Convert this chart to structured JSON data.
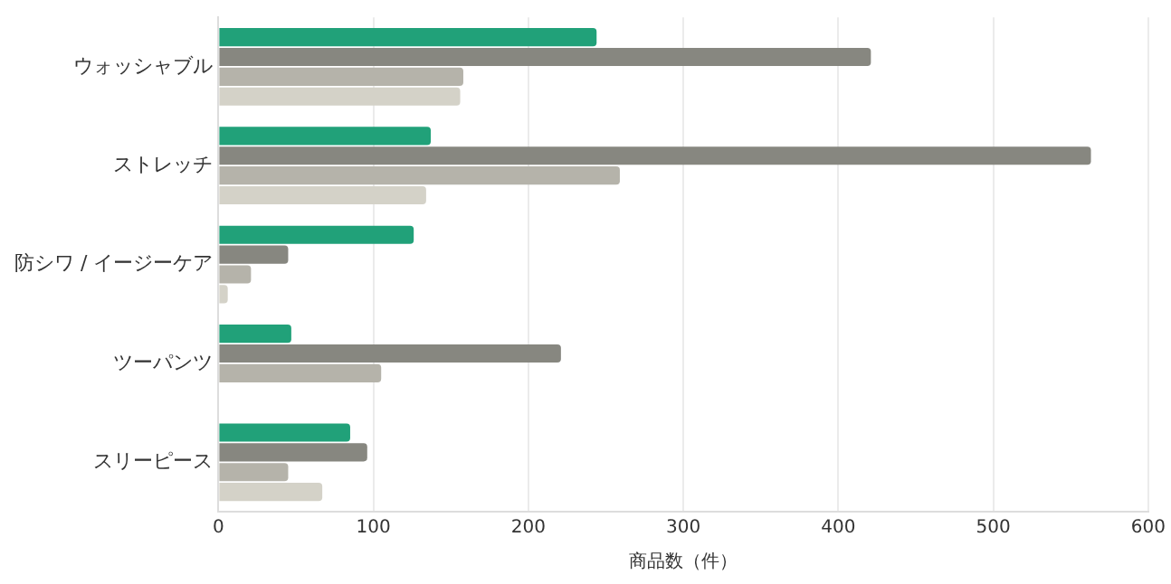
{
  "chart_data": {
    "type": "bar",
    "orientation": "horizontal",
    "xlabel": "商品数（件）",
    "categories": [
      "ウォッシャブル",
      "ストレッチ",
      "防シワ / イージーケア",
      "ツーパンツ",
      "スリーピース"
    ],
    "series": [
      {
        "color": "#21a179",
        "values": [
          244,
          137,
          126,
          47,
          85
        ]
      },
      {
        "color": "#878780",
        "values": [
          421,
          563,
          45,
          221,
          96
        ]
      },
      {
        "color": "#b5b3aa",
        "values": [
          158,
          259,
          21,
          105,
          45
        ]
      },
      {
        "color": "#d4d2c8",
        "values": [
          156,
          134,
          6,
          null,
          67
        ]
      }
    ],
    "xlim": [
      0,
      600
    ],
    "xticks": [
      0,
      100,
      200,
      300,
      400,
      500,
      600
    ],
    "grid": "x",
    "legend": false
  }
}
